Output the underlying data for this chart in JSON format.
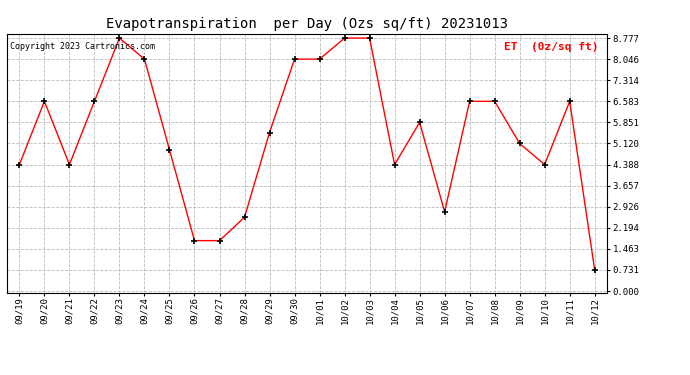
{
  "title": "Evapotranspiration  per Day (Ozs sq/ft) 20231013",
  "legend_label": "ET  (0z/sq ft)",
  "copyright": "Copyright 2023 Cartronics.com",
  "x_labels": [
    "09/19",
    "09/20",
    "09/21",
    "09/22",
    "09/23",
    "09/24",
    "09/25",
    "09/26",
    "09/27",
    "09/28",
    "09/29",
    "09/30",
    "10/01",
    "10/02",
    "10/03",
    "10/04",
    "10/05",
    "10/06",
    "10/07",
    "10/08",
    "10/09",
    "10/10",
    "10/11",
    "10/12"
  ],
  "y_values": [
    4.388,
    6.583,
    4.388,
    6.583,
    8.777,
    8.046,
    4.9,
    1.75,
    1.75,
    2.56,
    5.5,
    8.046,
    8.046,
    8.777,
    8.777,
    4.388,
    5.851,
    2.75,
    6.583,
    6.583,
    5.12,
    4.388,
    6.583,
    0.731
  ],
  "y_ticks": [
    0.0,
    0.731,
    1.463,
    2.194,
    2.926,
    3.657,
    4.388,
    5.12,
    5.851,
    6.583,
    7.314,
    8.046,
    8.777
  ],
  "line_color": "red",
  "marker_color": "black",
  "bg_color": "#ffffff",
  "grid_color": "#bbbbbb",
  "title_color": "black",
  "legend_color": "red",
  "copyright_color": "black",
  "figwidth": 6.9,
  "figheight": 3.75,
  "dpi": 100
}
